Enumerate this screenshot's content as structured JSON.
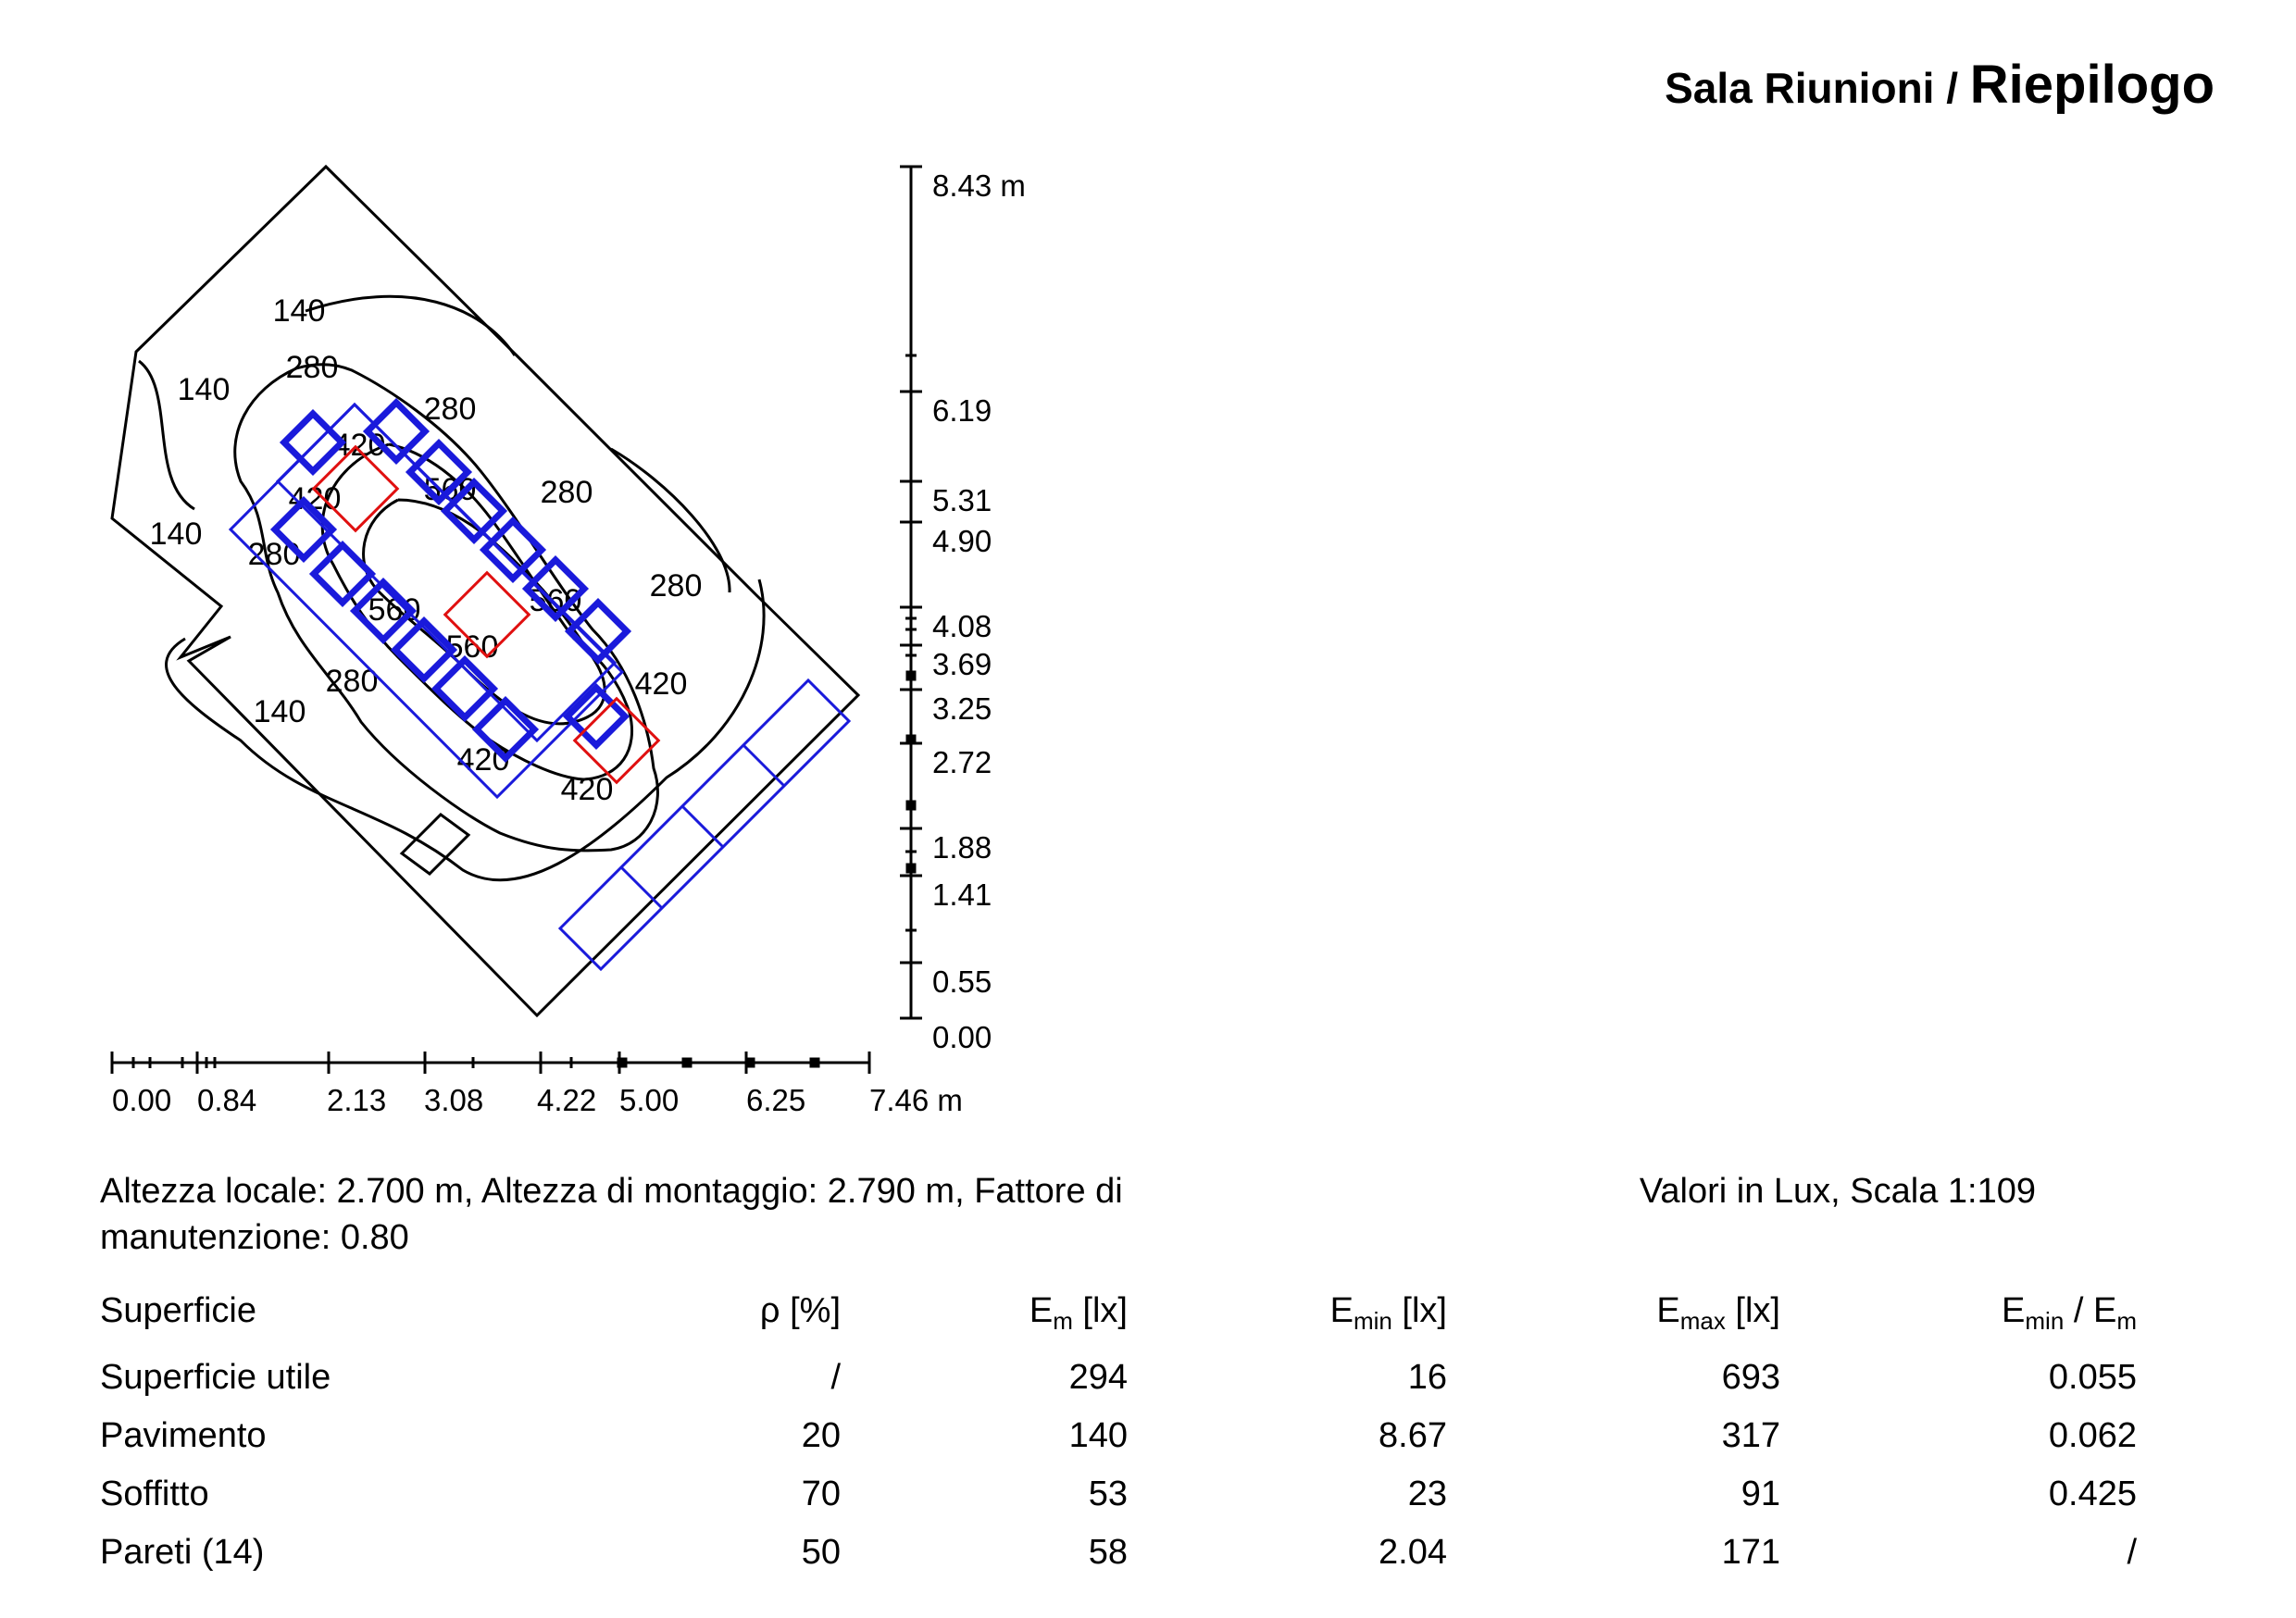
{
  "header": {
    "room": "Sala Riunioni",
    "separator": " / ",
    "section": "Riepilogo"
  },
  "plan": {
    "y_axis": {
      "ticks": [
        "8.43 m",
        "6.19",
        "5.31",
        "4.90",
        "4.08",
        "3.69",
        "3.25",
        "2.72",
        "1.88",
        "1.41",
        "0.55",
        "0.00"
      ]
    },
    "x_axis": {
      "ticks": [
        "0.00",
        "0.84",
        "2.13",
        "3.08",
        "4.22",
        "5.00",
        "6.25",
        "7.46 m"
      ]
    },
    "isolux_labels": [
      "140",
      "140",
      "140",
      "140",
      "280",
      "280",
      "280",
      "280",
      "280",
      "280",
      "420",
      "420",
      "420",
      "420",
      "420",
      "560",
      "560",
      "560",
      "560"
    ],
    "colors": {
      "outline": "#000000",
      "furniture": "#1a1adb",
      "luminaire": "#e01010"
    }
  },
  "info": {
    "left": "Altezza locale: 2.700 m, Altezza di montaggio: 2.790 m, Fattore di manutenzione: 0.80",
    "right": "Valori in Lux, Scala 1:109"
  },
  "table": {
    "headers": {
      "surface": "Superficie",
      "rho": "ρ [%]",
      "em_main": "E",
      "em_sub": "m",
      "em_unit": " [lx]",
      "emin_main": "E",
      "emin_sub": "min",
      "emin_unit": " [lx]",
      "emax_main": "E",
      "emax_sub": "max",
      "emax_unit": " [lx]",
      "ratio_a": "E",
      "ratio_a_sub": "min",
      "ratio_sep": " / E",
      "ratio_b_sub": "m"
    },
    "rows": [
      {
        "surface": "Superficie utile",
        "rho": "/",
        "em": "294",
        "emin": "16",
        "emax": "693",
        "ratio": "0.055"
      },
      {
        "surface": "Pavimento",
        "rho": "20",
        "em": "140",
        "emin": "8.67",
        "emax": "317",
        "ratio": "0.062"
      },
      {
        "surface": "Soffitto",
        "rho": "70",
        "em": "53",
        "emin": "23",
        "emax": "91",
        "ratio": "0.425"
      },
      {
        "surface": "Pareti (14)",
        "rho": "50",
        "em": "58",
        "emin": "2.04",
        "emax": "171",
        "ratio": "/"
      }
    ]
  }
}
